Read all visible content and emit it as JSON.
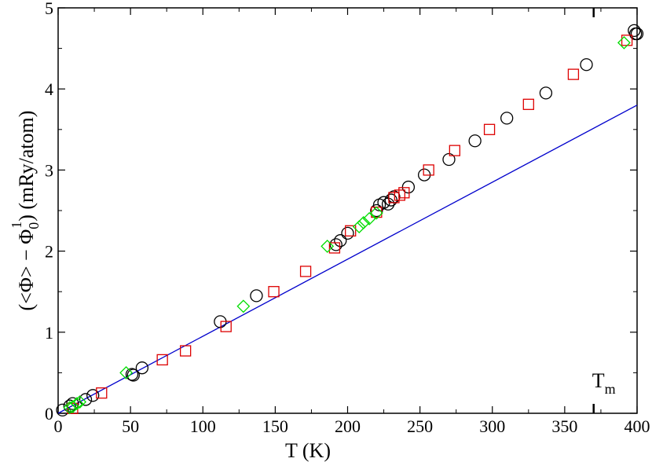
{
  "chart_data": {
    "type": "scatter",
    "xlabel": "T  (K)",
    "ylabel": {
      "before": "(<Φ> − Φ",
      "sub": "0",
      "sup": "1",
      "after": ")  (mRy/atom)"
    },
    "xlim": [
      0,
      400
    ],
    "ylim": [
      0,
      5
    ],
    "x_ticks": [
      0,
      50,
      100,
      150,
      200,
      250,
      300,
      350,
      400
    ],
    "y_ticks": [
      0,
      1,
      2,
      3,
      4,
      5
    ],
    "grid": false,
    "annotation": {
      "text": "T",
      "sub": "m",
      "x": 370
    },
    "colors": {
      "circles": "#000000",
      "squares": "#dd0000",
      "diamonds": "#00dd00",
      "line": "#0000cc"
    },
    "series": [
      {
        "marker": "circle",
        "color": "#000000",
        "points": [
          [
            3,
            0.04
          ],
          [
            8,
            0.09
          ],
          [
            10,
            0.12
          ],
          [
            19,
            0.17
          ],
          [
            24,
            0.22
          ],
          [
            51,
            0.48
          ],
          [
            52,
            0.47
          ],
          [
            58,
            0.56
          ],
          [
            112,
            1.13
          ],
          [
            137,
            1.45
          ],
          [
            192,
            2.08
          ],
          [
            195,
            2.13
          ],
          [
            200,
            2.22
          ],
          [
            220,
            2.5
          ],
          [
            222,
            2.57
          ],
          [
            225,
            2.6
          ],
          [
            228,
            2.58
          ],
          [
            230,
            2.63
          ],
          [
            232,
            2.67
          ],
          [
            242,
            2.79
          ],
          [
            253,
            2.94
          ],
          [
            270,
            3.13
          ],
          [
            288,
            3.36
          ],
          [
            310,
            3.64
          ],
          [
            337,
            3.95
          ],
          [
            365,
            4.3
          ],
          [
            398,
            4.72
          ],
          [
            399,
            4.68
          ],
          [
            400,
            4.68
          ]
        ]
      },
      {
        "marker": "square",
        "color": "#dd0000",
        "points": [
          [
            10,
            0.06
          ],
          [
            30,
            0.25
          ],
          [
            72,
            0.66
          ],
          [
            88,
            0.77
          ],
          [
            116,
            1.07
          ],
          [
            149,
            1.5
          ],
          [
            171,
            1.75
          ],
          [
            191,
            2.04
          ],
          [
            202,
            2.25
          ],
          [
            220,
            2.48
          ],
          [
            232,
            2.66
          ],
          [
            236,
            2.69
          ],
          [
            239,
            2.72
          ],
          [
            256,
            3.0
          ],
          [
            274,
            3.24
          ],
          [
            298,
            3.5
          ],
          [
            325,
            3.81
          ],
          [
            356,
            4.18
          ],
          [
            393,
            4.6
          ]
        ]
      },
      {
        "marker": "diamond",
        "color": "#00dd00",
        "points": [
          [
            8,
            0.07
          ],
          [
            10,
            0.08
          ],
          [
            13,
            0.12
          ],
          [
            15,
            0.14
          ],
          [
            47,
            0.5
          ],
          [
            128,
            1.32
          ],
          [
            186,
            2.06
          ],
          [
            208,
            2.3
          ],
          [
            211,
            2.35
          ],
          [
            215,
            2.4
          ],
          [
            220,
            2.47
          ],
          [
            391,
            4.57
          ]
        ]
      },
      {
        "type": "line",
        "color": "#0000cc",
        "points": [
          [
            0,
            0
          ],
          [
            400,
            3.8
          ]
        ]
      }
    ]
  }
}
